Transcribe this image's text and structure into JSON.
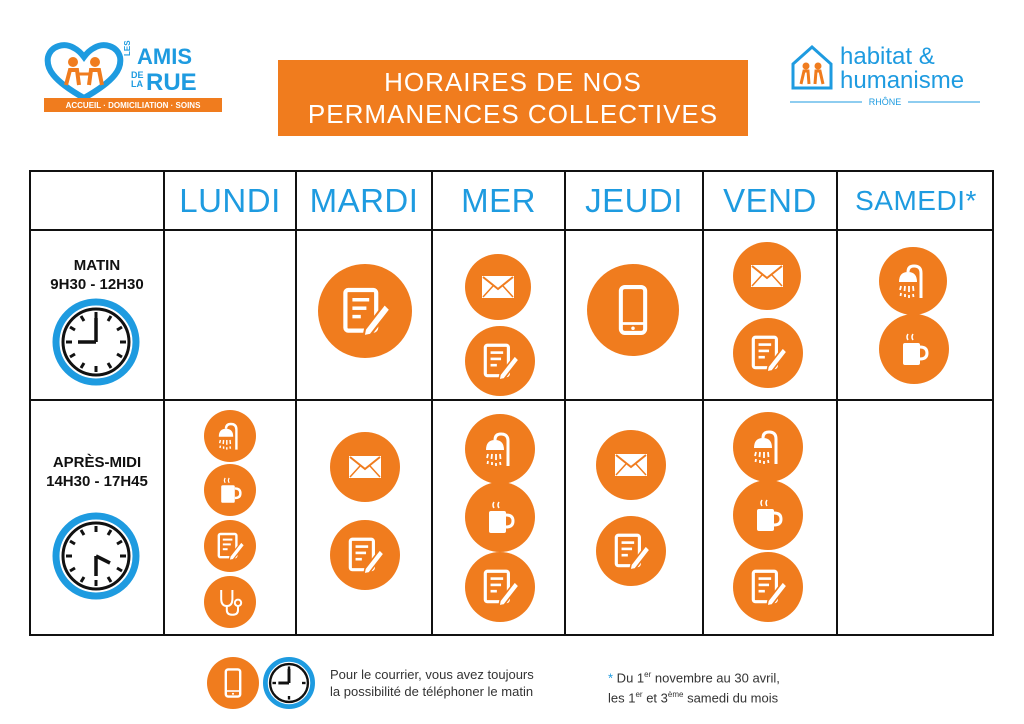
{
  "header": {
    "left_logo": {
      "line1": "LES",
      "line2": "AMIS",
      "line3": "DE",
      "line4": "LA",
      "line5": "RUE",
      "tagline": "ACCUEIL · DOMICILIATION · SOINS"
    },
    "title_line1": "HORAIRES DE NOS",
    "title_line2": "PERMANENCES COLLECTIVES",
    "right_logo": {
      "name_line1": "habitat &",
      "name_line2": "humanisme",
      "region": "RHÔNE"
    }
  },
  "days": [
    "LUNDI",
    "MARDI",
    "MER",
    "JEUDI",
    "VEND",
    "SAMEDI*"
  ],
  "rows": [
    {
      "label_line1": "MATIN",
      "label_line2": "9H30 - 12H30",
      "clock_icon": "clock-9-icon"
    },
    {
      "label_line1": "APRÈS-MIDI",
      "label_line2": "14H30 - 17H45",
      "clock_icon": "clock-2-icon"
    }
  ],
  "schedule": {
    "morning": {
      "LUNDI": [],
      "MARDI": [
        "writing-icon"
      ],
      "MER": [
        "mail-icon",
        "writing-icon"
      ],
      "JEUDI": [
        "phone-icon"
      ],
      "VEND": [
        "mail-icon",
        "writing-icon"
      ],
      "SAMEDI": [
        "shower-icon",
        "coffee-icon"
      ]
    },
    "afternoon": {
      "LUNDI": [
        "shower-icon",
        "coffee-icon",
        "writing-icon",
        "stethoscope-icon"
      ],
      "MARDI": [
        "mail-icon",
        "writing-icon"
      ],
      "MER": [
        "shower-icon",
        "coffee-icon",
        "writing-icon"
      ],
      "JEUDI": [
        "mail-icon",
        "writing-icon"
      ],
      "VEND": [
        "shower-icon",
        "coffee-icon",
        "writing-icon"
      ],
      "SAMEDI": []
    }
  },
  "footer": {
    "text_line1": "Pour le courrier, vous avez toujours",
    "text_line2": "la possibilité de téléphoner le matin",
    "note_star": "*",
    "note_line1a": " Du 1",
    "note_sup1": "er",
    "note_line1b": " novembre au 30 avril,",
    "note_line2a": "les 1",
    "note_sup2": "er",
    "note_line2b": " et 3",
    "note_sup3": "ème",
    "note_line2c": " samedi du mois"
  },
  "colors": {
    "orange": "#f07c1e",
    "blue": "#1e9be0",
    "line": "#111111"
  }
}
